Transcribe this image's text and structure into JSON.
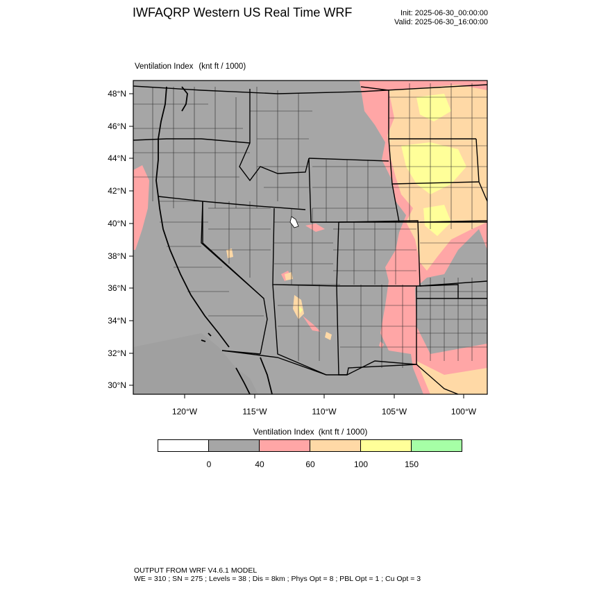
{
  "header": {
    "title": "IWFAQRP Western US Real Time WRF",
    "init": "Init: 2025-06-30_00:00:00",
    "valid": "Valid: 2025-06-30_16:00:00"
  },
  "field": {
    "name": "Ventilation Index",
    "units": "(knt ft / 1000)"
  },
  "map": {
    "region": "Western United States",
    "land_color": "#a6a6a6",
    "boundary_color": "#000000",
    "lat_labels": [
      "48°N",
      "46°N",
      "44°N",
      "42°N",
      "40°N",
      "38°N",
      "36°N",
      "34°N",
      "32°N",
      "30°N"
    ],
    "lon_labels": [
      "120°W",
      "115°W",
      "110°W",
      "105°W",
      "100°W"
    ]
  },
  "colorbar": {
    "title": "Ventilation Index",
    "units": "(knt ft / 1000)",
    "colors": [
      "#ffffff",
      "#a6a6a6",
      "#ffa6a6",
      "#ffd9a6",
      "#ffff99",
      "#a6ffa6"
    ],
    "tick_labels": [
      "0",
      "40",
      "60",
      "100",
      "150"
    ]
  },
  "footer": {
    "line1": "OUTPUT FROM WRF V4.6.1 MODEL",
    "line2": "WE = 310 ; SN = 275 ; Levels = 38 ; Dis = 8km ; Phys Opt = 8 ; PBL Opt = 1 ; Cu Opt = 3"
  }
}
